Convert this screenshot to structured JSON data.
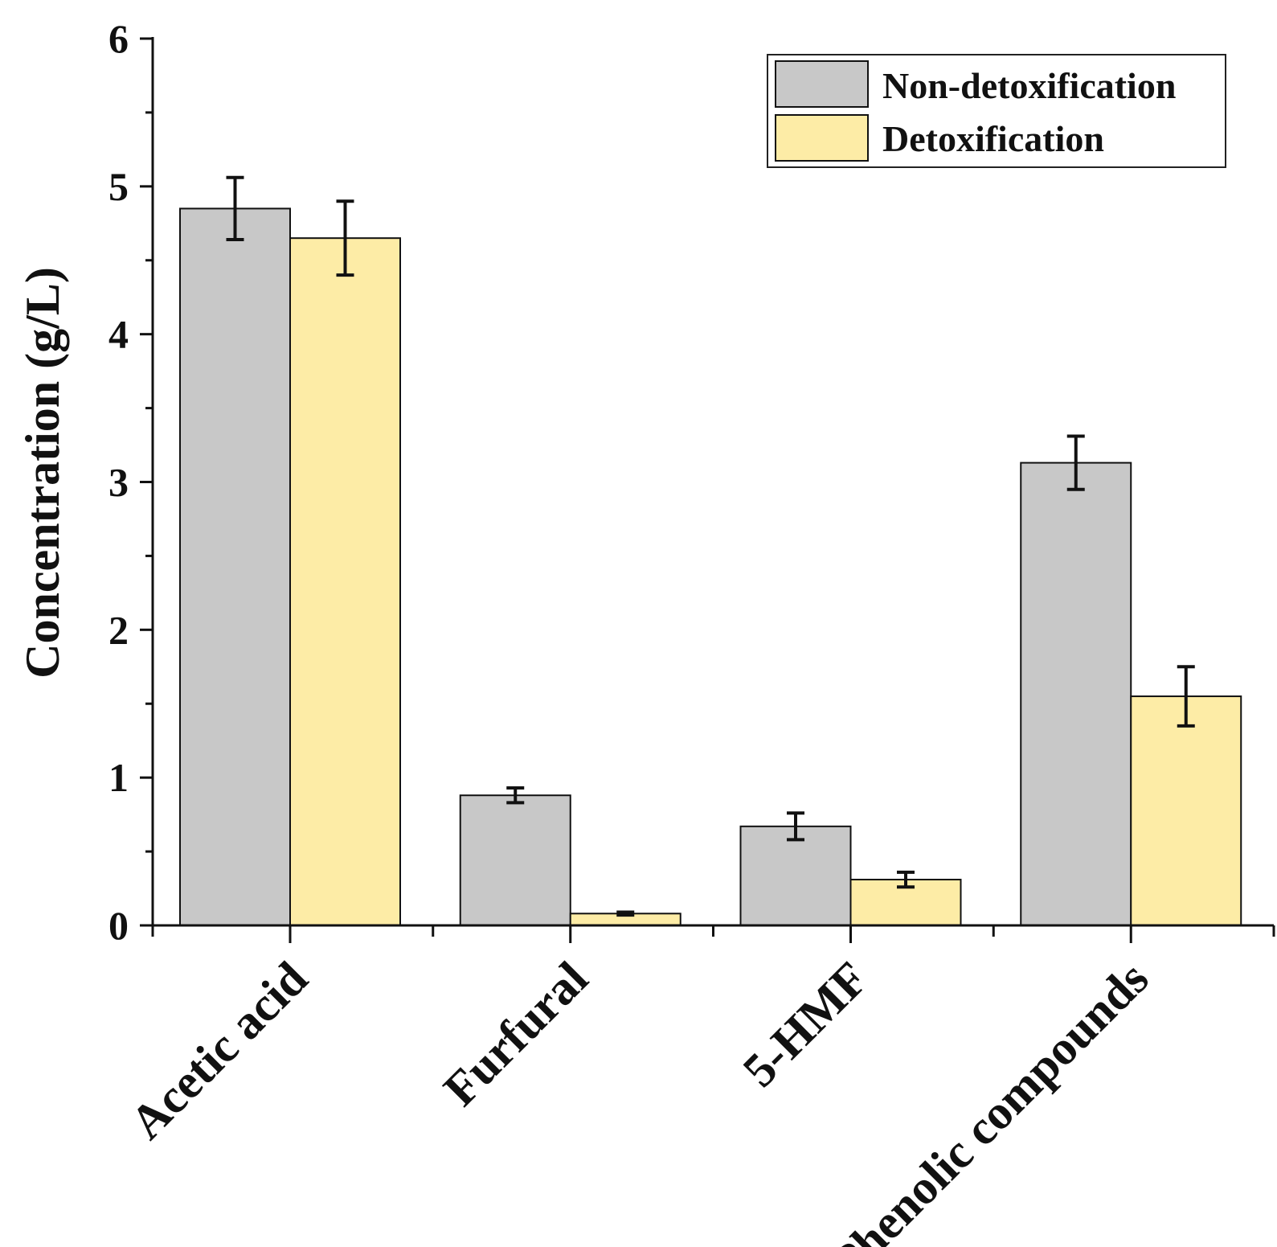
{
  "chart_data": {
    "type": "bar",
    "title": "",
    "xlabel": "",
    "ylabel": "Concentration (g/L)",
    "ylim": [
      0,
      6
    ],
    "yticks": [
      "0",
      "1",
      "2",
      "3",
      "4",
      "5",
      "6"
    ],
    "categories": [
      "Acetic acid",
      "Furfural",
      "5-HMF",
      "Phenolic compounds"
    ],
    "legend_position": "top-right",
    "series": [
      {
        "name": "Non-detoxification",
        "color": "#c8c8c8",
        "values": [
          4.85,
          0.88,
          0.67,
          3.13
        ],
        "errors": [
          0.21,
          0.05,
          0.09,
          0.18
        ]
      },
      {
        "name": "Detoxification",
        "color": "#fdeca6",
        "values": [
          4.65,
          0.08,
          0.31,
          1.55
        ],
        "errors": [
          0.25,
          0.01,
          0.05,
          0.2
        ]
      }
    ]
  }
}
